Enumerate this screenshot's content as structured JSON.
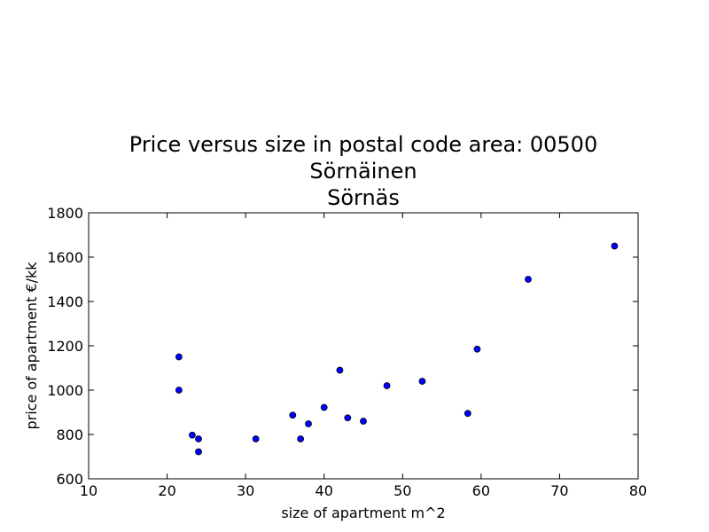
{
  "chart_data": {
    "type": "scatter",
    "title_lines": [
      "Price versus size in postal code area: 00500",
      "Sörnäinen",
      "Sörnäs"
    ],
    "xlabel": "size of apartment m^2",
    "ylabel": "price of apartment €/kk",
    "xlim": [
      10,
      80
    ],
    "ylim": [
      600,
      1800
    ],
    "xticks": [
      10,
      20,
      30,
      40,
      50,
      60,
      70,
      80
    ],
    "yticks": [
      600,
      800,
      1000,
      1200,
      1400,
      1600,
      1800
    ],
    "grid": false,
    "marker_color": "#0000ff",
    "points": [
      {
        "x": 21.5,
        "y": 1150
      },
      {
        "x": 21.5,
        "y": 1000
      },
      {
        "x": 23.2,
        "y": 797
      },
      {
        "x": 24.0,
        "y": 780
      },
      {
        "x": 24.0,
        "y": 722
      },
      {
        "x": 31.3,
        "y": 780
      },
      {
        "x": 36.0,
        "y": 887
      },
      {
        "x": 37.0,
        "y": 780
      },
      {
        "x": 38.0,
        "y": 848
      },
      {
        "x": 40.0,
        "y": 922
      },
      {
        "x": 42.0,
        "y": 1090
      },
      {
        "x": 43.0,
        "y": 875
      },
      {
        "x": 45.0,
        "y": 860
      },
      {
        "x": 48.0,
        "y": 1020
      },
      {
        "x": 52.5,
        "y": 1040
      },
      {
        "x": 58.3,
        "y": 895
      },
      {
        "x": 59.5,
        "y": 1185
      },
      {
        "x": 66.0,
        "y": 1500
      },
      {
        "x": 77.0,
        "y": 1650
      }
    ]
  }
}
